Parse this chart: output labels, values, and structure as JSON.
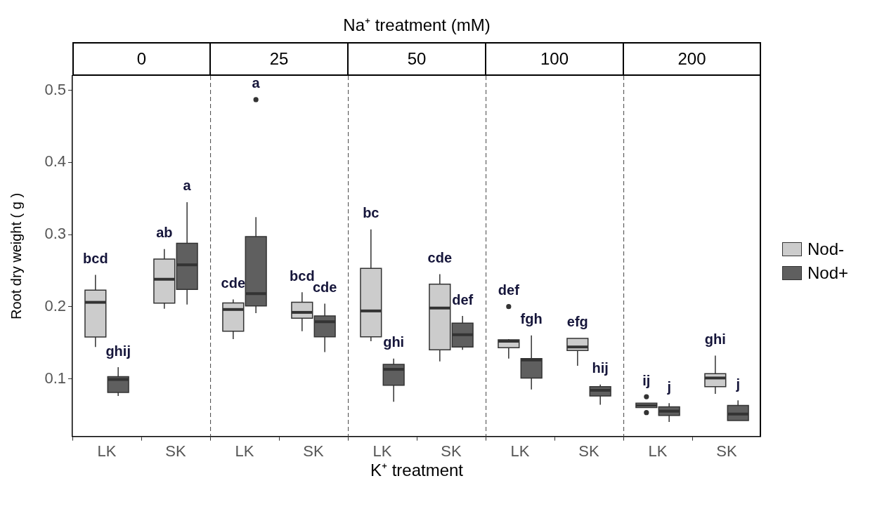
{
  "chart_data": [
    {
      "type": "box",
      "subtitle": "0",
      "ylabel": "Root dry weight ( g )",
      "categories": [
        "LK",
        "SK"
      ],
      "ylim": [
        0.02,
        0.52
      ],
      "yticks": [
        0.1,
        0.2,
        0.3,
        0.4,
        0.5
      ],
      "series": [
        {
          "color": "#cccccc",
          "boxes": [
            {
              "low": 0.144,
              "q1": 0.158,
              "median": 0.206,
              "q3": 0.223,
              "high": 0.244
            },
            {
              "low": 0.197,
              "q1": 0.205,
              "median": 0.238,
              "q3": 0.266,
              "high": 0.28
            }
          ]
        },
        {
          "color": "#5f5f5f",
          "boxes": [
            {
              "low": 0.076,
              "q1": 0.081,
              "median": 0.099,
              "q3": 0.103,
              "high": 0.116
            },
            {
              "low": 0.203,
              "q1": 0.224,
              "median": 0.258,
              "q3": 0.288,
              "high": 0.345
            }
          ]
        }
      ],
      "annotations": [
        "bcd",
        "ghij",
        "ab",
        "a"
      ]
    },
    {
      "type": "box",
      "subtitle": "25",
      "categories": [
        "LK",
        "SK"
      ],
      "ylim": [
        0.02,
        0.52
      ],
      "yticks": [
        0.1,
        0.2,
        0.3,
        0.4,
        0.5
      ],
      "tick_labels": "x",
      "series": [
        {
          "color": "#cccccc",
          "boxes": [
            {
              "low": 0.155,
              "q1": 0.166,
              "median": 0.196,
              "q3": 0.205,
              "high": 0.21
            },
            {
              "low": 0.166,
              "q1": 0.184,
              "median": 0.192,
              "q3": 0.206,
              "high": 0.22
            }
          ]
        },
        {
          "color": "#5f5f5f",
          "boxes": [
            {
              "low": 0.191,
              "q1": 0.201,
              "median": 0.218,
              "q3": 0.297,
              "high": 0.324,
              "outliers": [
                0.487
              ]
            },
            {
              "low": 0.137,
              "q1": 0.158,
              "median": 0.179,
              "q3": 0.187,
              "high": 0.204
            }
          ]
        }
      ],
      "annotations": [
        "cde",
        "a",
        "bcd",
        "cde"
      ]
    },
    {
      "type": "box",
      "title": "Na⁺ treatment (mM)",
      "subtitle": "50",
      "xlabel": "K⁺ treatment",
      "categories": [
        "LK",
        "SK"
      ],
      "ylim": [
        0.02,
        0.52
      ],
      "yticks": [
        0.1,
        0.2,
        0.3,
        0.4,
        0.5
      ],
      "tick_labels": "x",
      "series": [
        {
          "color": "#cccccc",
          "boxes": [
            {
              "low": 0.152,
              "q1": 0.158,
              "median": 0.194,
              "q3": 0.253,
              "high": 0.307
            },
            {
              "low": 0.124,
              "q1": 0.14,
              "median": 0.198,
              "q3": 0.231,
              "high": 0.245
            }
          ]
        },
        {
          "color": "#5f5f5f",
          "boxes": [
            {
              "low": 0.068,
              "q1": 0.091,
              "median": 0.113,
              "q3": 0.12,
              "high": 0.128
            },
            {
              "low": 0.14,
              "q1": 0.144,
              "median": 0.161,
              "q3": 0.177,
              "high": 0.187
            }
          ]
        }
      ],
      "annotations": [
        "bc",
        "ghi",
        "cde",
        "def"
      ]
    },
    {
      "type": "box",
      "subtitle": "100",
      "categories": [
        "LK",
        "SK"
      ],
      "ylim": [
        0.02,
        0.52
      ],
      "yticks": [
        0.1,
        0.2,
        0.3,
        0.4,
        0.5
      ],
      "tick_labels": "x",
      "series": [
        {
          "color": "#cccccc",
          "boxes": [
            {
              "low": 0.128,
              "q1": 0.143,
              "median": 0.152,
              "q3": 0.154,
              "high": 0.155,
              "outliers": [
                0.2
              ]
            },
            {
              "low": 0.118,
              "q1": 0.139,
              "median": 0.144,
              "q3": 0.156,
              "high": 0.156
            }
          ]
        },
        {
          "color": "#5f5f5f",
          "boxes": [
            {
              "low": 0.085,
              "q1": 0.101,
              "median": 0.126,
              "q3": 0.128,
              "high": 0.16
            },
            {
              "low": 0.064,
              "q1": 0.076,
              "median": 0.084,
              "q3": 0.089,
              "high": 0.092
            }
          ]
        }
      ],
      "annotations": [
        "def",
        "fgh",
        "efg",
        "hij"
      ]
    },
    {
      "type": "box",
      "subtitle": "200",
      "categories": [
        "LK",
        "SK"
      ],
      "ylim": [
        0.02,
        0.52
      ],
      "yticks": [
        0.1,
        0.2,
        0.3,
        0.4,
        0.5
      ],
      "tick_labels": "x",
      "legend": "right",
      "series": [
        {
          "name": "Nod-",
          "color": "#cccccc",
          "boxes": [
            {
              "low": 0.06,
              "q1": 0.06,
              "median": 0.063,
              "q3": 0.066,
              "high": 0.066,
              "outliers": [
                0.075,
                0.053
              ]
            },
            {
              "low": 0.079,
              "q1": 0.089,
              "median": 0.101,
              "q3": 0.107,
              "high": 0.132
            }
          ]
        },
        {
          "name": "Nod+",
          "color": "#5f5f5f",
          "boxes": [
            {
              "low": 0.04,
              "q1": 0.049,
              "median": 0.055,
              "q3": 0.061,
              "high": 0.066
            },
            {
              "low": 0.042,
              "q1": 0.042,
              "median": 0.051,
              "q3": 0.063,
              "high": 0.07
            }
          ]
        }
      ],
      "annotations": [
        "ij",
        "j",
        "ghi",
        "j"
      ]
    }
  ]
}
